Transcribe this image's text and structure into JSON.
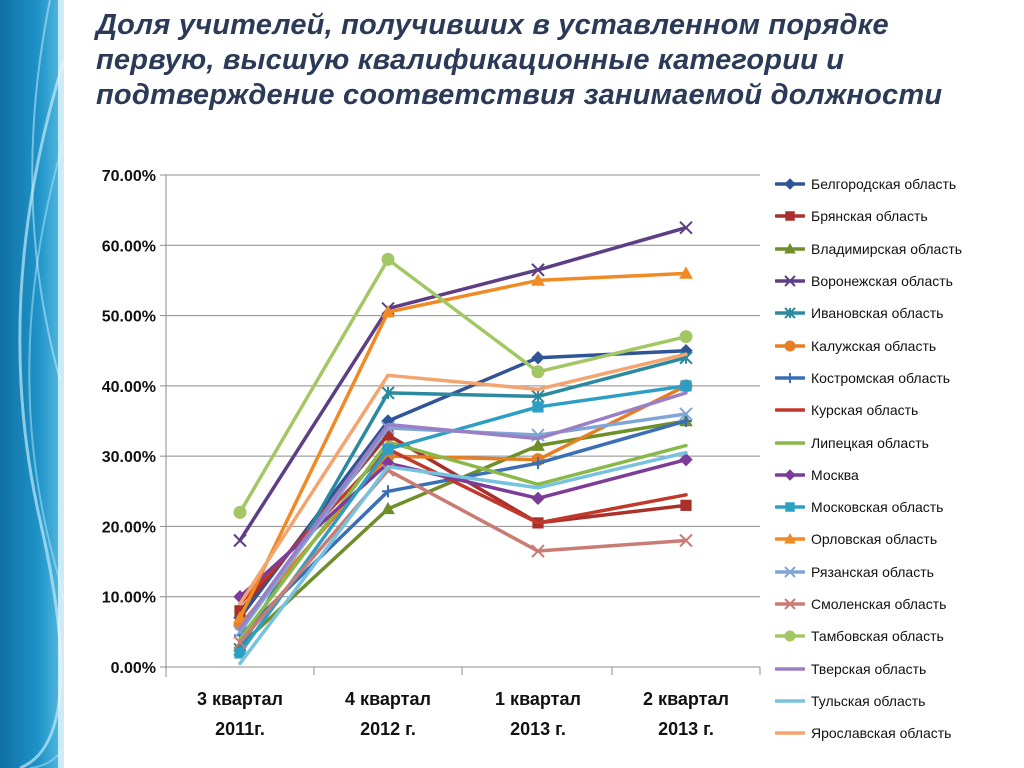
{
  "slide": {
    "title": "Доля учителей, получивших в уставленном порядке первую, высшую квалификационные категории и подтверждение соответствия занимаемой должности"
  },
  "theme": {
    "deco_dark": "#1b86b8",
    "deco_light": "#8fd3ee"
  },
  "chart_data": {
    "type": "line",
    "title": "",
    "xlabel": "",
    "ylabel": "",
    "categories": [
      [
        "3 квартал",
        "2011г."
      ],
      [
        "4 квартал",
        "2012 г."
      ],
      [
        "1 квартал",
        "2013 г."
      ],
      [
        "2 квартал",
        "2013 г."
      ]
    ],
    "ylim": [
      0,
      70
    ],
    "y_ticks": [
      "0.00%",
      "10.00%",
      "20.00%",
      "30.00%",
      "40.00%",
      "50.00%",
      "60.00%",
      "70.00%"
    ],
    "y_unit": "percent",
    "grid": true,
    "legend_position": "right",
    "series": [
      {
        "name": "Белгородская область",
        "color": "#2f5597",
        "marker": "diamond",
        "values": [
          7,
          35,
          44,
          45
        ]
      },
      {
        "name": "Брянская область",
        "color": "#a9302b",
        "marker": "square",
        "values": [
          8,
          33,
          20.5,
          23
        ]
      },
      {
        "name": "Владимирская область",
        "color": "#6f8f2a",
        "marker": "triangle",
        "values": [
          3,
          22.5,
          31.5,
          35
        ]
      },
      {
        "name": "Воронежская область",
        "color": "#5e3e84",
        "marker": "x",
        "values": [
          18,
          51,
          56.5,
          62.5
        ]
      },
      {
        "name": "Ивановская область",
        "color": "#2b8aa0",
        "marker": "star",
        "values": [
          2.5,
          39,
          38.5,
          44
        ]
      },
      {
        "name": "Калужская область",
        "color": "#e67e22",
        "marker": "circle",
        "values": [
          6,
          30,
          29.5,
          40
        ]
      },
      {
        "name": "Костромская область",
        "color": "#3a6fb5",
        "marker": "plus",
        "values": [
          4.5,
          25,
          29,
          35
        ]
      },
      {
        "name": "Курская область",
        "color": "#c0392b",
        "marker": "line",
        "values": [
          9,
          31,
          20.5,
          24.5
        ]
      },
      {
        "name": "Липецкая область",
        "color": "#8bb84a",
        "marker": "line",
        "values": [
          4,
          32,
          26,
          31.5
        ]
      },
      {
        "name": "Москва",
        "color": "#7d3c98",
        "marker": "diamond",
        "values": [
          10,
          29,
          24,
          29.5
        ]
      },
      {
        "name": "Московская область",
        "color": "#2e9fc4",
        "marker": "square",
        "values": [
          2,
          31,
          37,
          40
        ]
      },
      {
        "name": "Орловская область",
        "color": "#f08a24",
        "marker": "triangle",
        "values": [
          7,
          50.5,
          55,
          56
        ]
      },
      {
        "name": "Рязанская область",
        "color": "#7fa6d6",
        "marker": "x",
        "values": [
          5,
          34,
          33,
          36
        ]
      },
      {
        "name": "Смоленская область",
        "color": "#c97b74",
        "marker": "x",
        "values": [
          3.5,
          28,
          16.5,
          18
        ]
      },
      {
        "name": "Тамбовская область",
        "color": "#a4c766",
        "marker": "circle",
        "values": [
          22,
          58,
          42,
          47
        ]
      },
      {
        "name": "Тверская область",
        "color": "#9b7fc4",
        "marker": "line",
        "values": [
          5.5,
          34.5,
          32.5,
          39
        ]
      },
      {
        "name": "Тульская область",
        "color": "#76c2df",
        "marker": "line",
        "values": [
          0.5,
          28.5,
          25.5,
          30.5
        ]
      },
      {
        "name": "Ярославская область",
        "color": "#f4a46e",
        "marker": "line",
        "values": [
          9,
          41.5,
          39.5,
          44.5
        ]
      }
    ]
  }
}
